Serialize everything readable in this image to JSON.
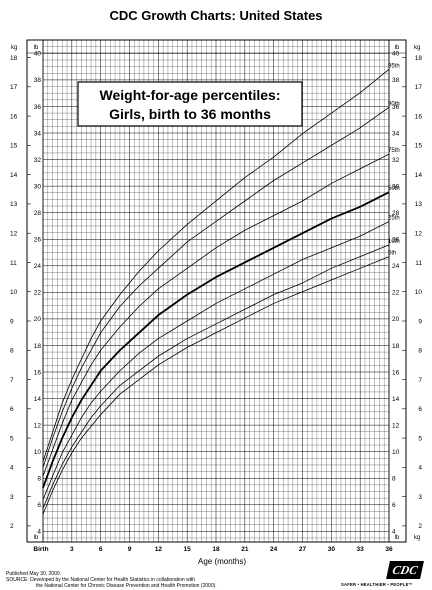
{
  "header": {
    "title": "CDC Growth Charts: United States"
  },
  "chart_data": {
    "type": "line",
    "title": "Weight-for-age percentiles:",
    "subtitle": "Girls, birth to 36 months",
    "xlabel": "Age (months)",
    "x_unit_left": "kg",
    "x_unit_right": "lb",
    "xlim": [
      0,
      36
    ],
    "x_ticks": [
      {
        "value": 0,
        "label": "Birth"
      },
      {
        "value": 3,
        "label": "3"
      },
      {
        "value": 6,
        "label": "6"
      },
      {
        "value": 9,
        "label": "9"
      },
      {
        "value": 12,
        "label": "12"
      },
      {
        "value": 15,
        "label": "15"
      },
      {
        "value": 18,
        "label": "18"
      },
      {
        "value": 21,
        "label": "21"
      },
      {
        "value": 24,
        "label": "24"
      },
      {
        "value": 27,
        "label": "27"
      },
      {
        "value": 30,
        "label": "30"
      },
      {
        "value": 33,
        "label": "33"
      },
      {
        "value": 36,
        "label": "36"
      }
    ],
    "ylim_kg": [
      1.45,
      18.6
    ],
    "y_ticks_kg": [
      2,
      3,
      4,
      5,
      6,
      7,
      8,
      9,
      10,
      11,
      12,
      13,
      14,
      15,
      16,
      17,
      18
    ],
    "y_ticks_lb": [
      4,
      6,
      8,
      10,
      12,
      14,
      16,
      18,
      20,
      22,
      24,
      26,
      28,
      30,
      32,
      34,
      36,
      38,
      40
    ],
    "grid": true,
    "x": [
      0,
      1,
      2,
      3,
      4,
      5,
      6,
      8,
      10,
      12,
      15,
      18,
      21,
      24,
      27,
      30,
      33,
      36
    ],
    "series": [
      {
        "name": "5th",
        "values": [
          2.4,
          3.2,
          3.9,
          4.5,
          5.0,
          5.4,
          5.8,
          6.5,
          7.0,
          7.5,
          8.1,
          8.6,
          9.1,
          9.6,
          10.0,
          10.4,
          10.8,
          11.2
        ]
      },
      {
        "name": "10th",
        "values": [
          2.6,
          3.4,
          4.1,
          4.7,
          5.2,
          5.7,
          6.1,
          6.8,
          7.3,
          7.8,
          8.4,
          8.9,
          9.4,
          9.9,
          10.3,
          10.8,
          11.2,
          11.6
        ]
      },
      {
        "name": "25th",
        "values": [
          2.9,
          3.7,
          4.5,
          5.1,
          5.7,
          6.2,
          6.6,
          7.3,
          7.9,
          8.4,
          9.0,
          9.6,
          10.1,
          10.6,
          11.1,
          11.5,
          11.9,
          12.4
        ]
      },
      {
        "name": "50th",
        "values": [
          3.3,
          4.2,
          5.0,
          5.7,
          6.3,
          6.8,
          7.3,
          8.0,
          8.6,
          9.2,
          9.9,
          10.5,
          11.0,
          11.5,
          12.0,
          12.5,
          12.9,
          13.4
        ]
      },
      {
        "name": "75th",
        "values": [
          3.7,
          4.6,
          5.5,
          6.3,
          6.9,
          7.5,
          8.0,
          8.8,
          9.5,
          10.1,
          10.8,
          11.5,
          12.1,
          12.6,
          13.1,
          13.7,
          14.2,
          14.7
        ]
      },
      {
        "name": "90th",
        "values": [
          4.0,
          5.0,
          5.9,
          6.7,
          7.4,
          8.0,
          8.6,
          9.5,
          10.2,
          10.8,
          11.7,
          12.4,
          13.1,
          13.8,
          14.4,
          15.0,
          15.6,
          16.3
        ]
      },
      {
        "name": "95th",
        "values": [
          4.2,
          5.2,
          6.2,
          7.0,
          7.7,
          8.4,
          9.0,
          9.9,
          10.7,
          11.4,
          12.3,
          13.1,
          13.9,
          14.6,
          15.4,
          16.1,
          16.8,
          17.6
        ]
      }
    ],
    "highlight_series": "50th"
  },
  "footer": {
    "published": "Published May 30, 2000.",
    "source": "SOURCE: Developed by the National Center for Health Statistics in collaboration with",
    "source2": "the National Center for Chronic Disease Prevention and Health Promotion (2000).",
    "logo_text": "CDC",
    "tagline": "SAFER • HEALTHIER • PEOPLE™"
  }
}
